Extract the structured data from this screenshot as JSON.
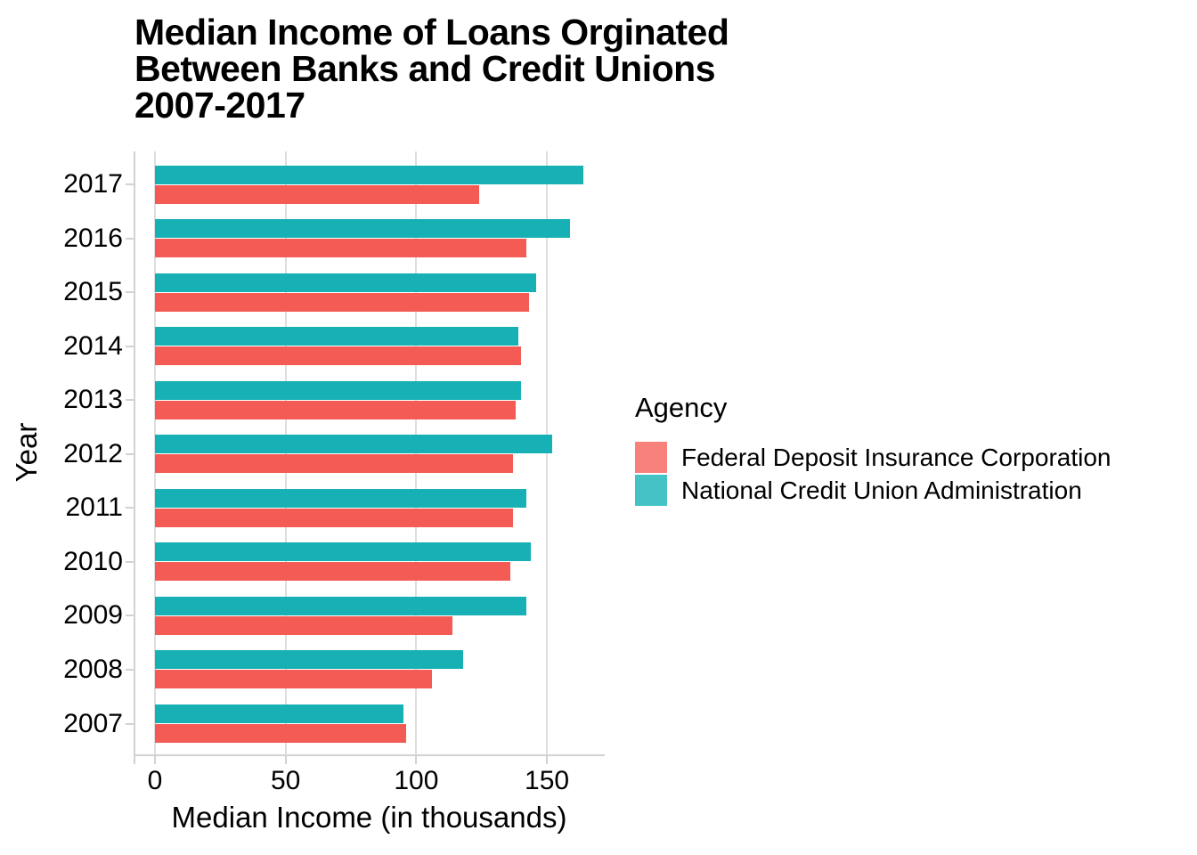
{
  "chart_data": {
    "type": "bar",
    "orientation": "horizontal",
    "title": "Median Income of Loans Orginated Between Banks and Credit Unions 2007-2017",
    "title_lines": [
      "Median Income of Loans Orginated",
      "Between Banks and Credit Unions",
      "2007-2017"
    ],
    "xlabel": "Median Income (in thousands)",
    "ylabel": "Year",
    "categories": [
      "2017",
      "2016",
      "2015",
      "2014",
      "2013",
      "2012",
      "2011",
      "2010",
      "2009",
      "2008",
      "2007"
    ],
    "series": [
      {
        "name": "Federal Deposit Insurance Corporation",
        "color": "#F45B54",
        "legend_color": "#F8817C",
        "values": [
          124,
          142,
          143,
          140,
          138,
          137,
          137,
          136,
          114,
          106,
          96
        ]
      },
      {
        "name": "National Credit Union Administration",
        "color": "#17B1B5",
        "legend_color": "#45C2C4",
        "values": [
          164,
          159,
          146,
          139,
          140,
          152,
          142,
          144,
          142,
          118,
          95
        ]
      }
    ],
    "bar_order_within_group_top_first": "National Credit Union Administration",
    "x_ticks": [
      0,
      50,
      100,
      150
    ],
    "xlim": [
      0,
      172
    ],
    "grid": "vertical-major-only",
    "legend": {
      "title": "Agency",
      "position": "right"
    }
  }
}
